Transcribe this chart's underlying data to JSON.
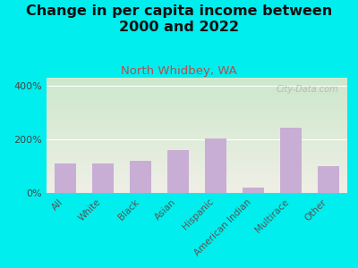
{
  "title": "Change in per capita income between\n2000 and 2022",
  "subtitle": "North Whidbey, WA",
  "categories": [
    "All",
    "White",
    "Black",
    "Asian",
    "Hispanic",
    "American Indian",
    "Multirace",
    "Other"
  ],
  "values": [
    110,
    110,
    120,
    160,
    205,
    20,
    245,
    100
  ],
  "bar_color": "#c8aed4",
  "background_outer": "#00eeee",
  "plot_bg_top": "#cce8cc",
  "plot_bg_bottom": "#f0efe6",
  "title_color": "#111111",
  "subtitle_color": "#b05050",
  "yticks": [
    0,
    200,
    400
  ],
  "ylim": [
    0,
    430
  ],
  "watermark": "City-Data.com",
  "title_fontsize": 11.5,
  "subtitle_fontsize": 9.5
}
